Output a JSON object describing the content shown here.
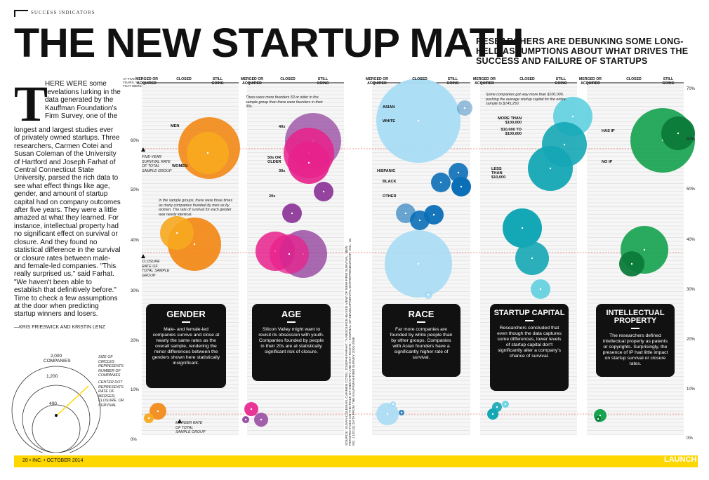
{
  "kicker": "SUCCESS INDICATORS",
  "headline": "THE NEW STARTUP MATH",
  "deck": "RESEARCHERS ARE DEBUNKING SOME LONG-HELD ASSUMPTIONS ABOUT WHAT DRIVES THE SUCCESS AND FAILURE OF STARTUPS",
  "story": {
    "dropcap": "T",
    "lead": "HERE WERE some revelations lurking in the data generated by the Kauffman Foundation's Firm Survey, one of the",
    "body": "longest and largest studies ever of privately owned startups. Three researchers, Carmen Cotei and Susan Coleman of the University of Hartford and Joseph Farhat of Central Connecticut State University, parsed the rich data to see what effect things like age, gender, and amount of startup capital had on company outcomes after five years. They were a little amazed at what they learned. For instance, intellectual property had no significant effect on survival or closure. And they found no statistical difference in the survival or closure rates between male- and female-led companies. \"This really surprised us,\" said Farhat. \"We haven't been able to establish that definitively before.\" Time to check a few assumptions at the door when predicting startup winners and losers.",
    "credit": "—KRIS FRIESWICK AND KRISTIN LENZ"
  },
  "legend": {
    "c1": "2,000 COMPANIES",
    "c2": "1,200",
    "c3": "400",
    "size_note": "SIZE OF CIRCLES REPRESENTS NUMBER OF COMPANIES",
    "center_note": "CENTER DOT REPRESENTS RATE OF MERGER, CLOSURE, OR SURVIVAL"
  },
  "axis": {
    "header": "AT FIVE YEARS, % THAT WERE:",
    "left_ticks": [
      "60%",
      "50%",
      "40%",
      "30%",
      "20%",
      "10%",
      "0%"
    ],
    "right_ticks": [
      "70%",
      "60%",
      "50%",
      "40%",
      "30%",
      "20%",
      "10%",
      "0%"
    ]
  },
  "col_heads": [
    "MERGED OR ACQUIRED",
    "CLOSED",
    "STILL GOING"
  ],
  "gender": {
    "labels": {
      "men": "MEN",
      "women": "WOMEN"
    },
    "survival_note": "FIVE-YEAR SURVIVAL RATE OF TOTAL SAMPLE GROUP",
    "closure_note": "CLOSURE RATE OF TOTAL SAMPLE GROUP",
    "merger_note": "MERGER RATE OF TOTAL SAMPLE GROUP",
    "callout": "In the sample groups, there were three times as many companies founded by men as by women. The rate of survival for each gender was nearly identical.",
    "title": "GENDER",
    "text": "Male- and female-led companies survive and close at nearly the same rates as the overall sample, rendering the minor differences between the genders shown here statistically insignificant."
  },
  "age": {
    "labels": {
      "l40": "40s",
      "l50": "50s OR OLDER",
      "l30": "30s",
      "l20": "20s"
    },
    "callout": "There were more founders 50 or older in the sample group than there were founders in their 30s.",
    "title": "AGE",
    "text": "Silicon Valley might want to revisit its obsession with youth. Companies founded by people in their 20s are at statistically significant risk of closure."
  },
  "race": {
    "labels": {
      "asian": "ASIAN",
      "white": "WHITE",
      "hispanic": "HISPANIC",
      "black": "BLACK",
      "other": "OTHER"
    },
    "title": "RACE",
    "text": "Far more companies are founded by white people than by other groups. Companies with Asian founders have a significantly higher rate of survival."
  },
  "capital": {
    "labels": {
      "more": "MORE THAN $100,000",
      "mid": "$10,000 TO $100,000",
      "less": "LESS THAN $10,000"
    },
    "callout": "Some companies got way more than $100,000, pushing the average startup capital for the entire sample to $145,250.",
    "title": "STARTUP CAPITAL",
    "text": "Researchers concluded that even though the data captures some differences, lower levels of startup capital don't significantly alter a company's chance of survival."
  },
  "ip": {
    "labels": {
      "has": "HAS IP",
      "no": "NO IP"
    },
    "title": "INTELLECTUAL PROPERTY",
    "text": "The researchers defined intellectual property as patents or copyrights. Surprisingly, the presence of IP had little impact on startup survival or closure rates."
  },
  "source_note": "SOURCE: SUSAN COLEMAN, CARMEN COTEI, JOSEPH FARHAT, \"A RESOURCE-BASED VIEW OF NEW FIRM SURVIVAL: NEW PERSPECTIVES ON THE ROLE OF INDUSTRY AND EXIT ROUTE,\" JOURNAL OF DEVELOPMENTAL ENTREPRENEURSHIP, VOL. 18, NO. 1 (2013); DATA FROM THE KAUFFMAN FIRM SURVEY 2004-2008",
  "footer": {
    "left": "20 • INC. • OCTOBER 2014",
    "right": "LAUNCH"
  },
  "colors": {
    "gender": "#f28a1a",
    "gender_light": "#f7a91f",
    "age_pink": "#e8218c",
    "age_purple": "#8e3a9a",
    "race": "#a8dcf4",
    "race_dark": "#0b6fb7",
    "capital": "#14a7b5",
    "capital_light": "#5fd0e0",
    "ip": "#18a351",
    "ip_dark": "#0c7a3a",
    "footer": "#ffd700"
  }
}
